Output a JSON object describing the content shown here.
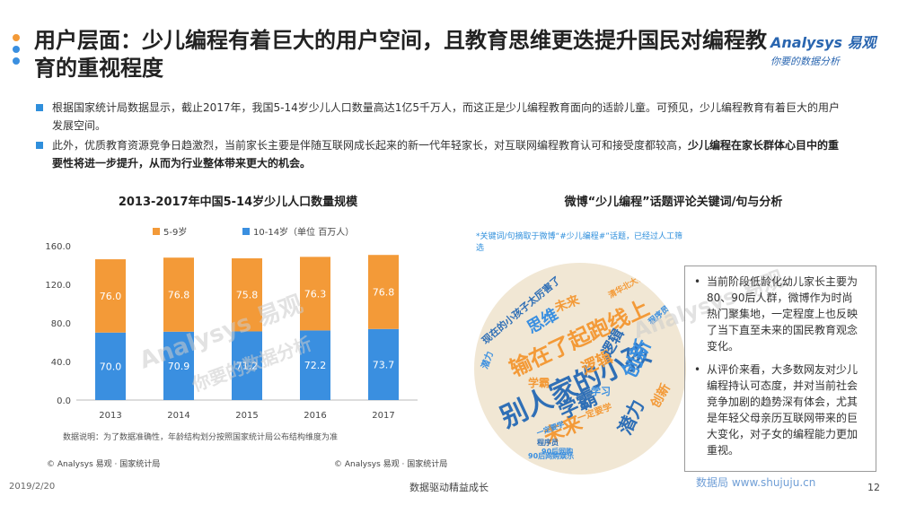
{
  "page": {
    "title": "用户层面：少儿编程有着巨大的用户空间，且教育思维更迭提升国民对编程教育的重视程度",
    "logo": {
      "brand": "Analysys 易观",
      "tagline": "你要的数据分析"
    },
    "bullets": [
      {
        "text": "根据国家统计局数据显示，截止2017年，我国5-14岁少儿人口数量高达1亿5千万人，而这正是少儿编程教育面向的适龄儿童。可预见，少儿编程教育有着巨大的用户发展空间。",
        "bold": ""
      },
      {
        "text": "此外，优质教育资源竞争日趋激烈，当前家长主要是伴随互联网成长起来的新一代年轻家长，对互联网编程教育认可和接受度都较高，",
        "bold": "少儿编程在家长群体心目中的重要性将进一步提升，从而为行业整体带来更大的机会。"
      }
    ],
    "left_chart_title": "2013-2017年中国5-14岁少儿人口数量规模",
    "right_title": "微博“少儿编程”话题评论关键词/句与分析",
    "chart_note": "数据说明：为了数据准确性，年龄结构划分按照国家统计局公布结构维度为准",
    "left_source": "© Analysys 易观 · 国家统计局",
    "mid_source": "© Analysys 易观 · 国家统计局",
    "keyword_note": "*关键词/句摘取于微博“#少儿编程#”话题，已经过人工筛选",
    "analysis": [
      "当前阶段低龄化幼儿家长主要为80、90后人群，微博作为时尚热门聚集地，一定程度上也反映了当下直至未来的国民教育观念变化。",
      "从评价来看，大多数网友对少儿编程持认可态度，并对当前社会竞争加剧的趋势深有体会，尤其是年轻父母亲历互联网带来的巨大变化，对子女的编程能力更加重视。"
    ],
    "footer": {
      "date": "2019/2/20",
      "center": "数据驱动精益成长",
      "page": "12",
      "watermark": "数据局 www.shujuju.cn"
    },
    "watermarks": {
      "chart": "Analysys 易观",
      "chart_sub": "你要的数据分析",
      "cloud": "Analysys 易观"
    },
    "wordcloud": [
      "别人家的小孩",
      "输在了起跑线上",
      "未来",
      "学霸",
      "潜力",
      "创新",
      "逻辑",
      "思维",
      "现在的小孩子太厉害了",
      "90后网购娱乐",
      "学霸",
      "程序员",
      "一定要学",
      "90后网购",
      "清华北大在招",
      "未来",
      "潜力",
      "程序员未来",
      "逻辑",
      "创新",
      "学习",
      "一定要学"
    ],
    "colors": {
      "series_5_9": "#f39a38",
      "series_10_14": "#3a8fe0",
      "accent": "#2f8fdc",
      "title_dot_1": "#f39a38",
      "title_dot_2": "#3a8fe0",
      "title_dot_3": "#3a8fe0"
    }
  },
  "chart_data": {
    "type": "bar",
    "stacked": true,
    "categories": [
      "2013",
      "2014",
      "2015",
      "2016",
      "2017"
    ],
    "series": [
      {
        "name": "10-14岁（单位 百万人）",
        "values": [
          70.0,
          70.9,
          71.2,
          72.2,
          73.7
        ]
      },
      {
        "name": "5-9岁",
        "values": [
          76.0,
          76.8,
          75.8,
          76.3,
          76.8
        ]
      }
    ],
    "legend": [
      "5-9岁",
      "10-14岁（单位 百万人）"
    ],
    "legend_position": "top",
    "ylim": [
      0,
      160
    ],
    "yticks": [
      "0.0",
      "40.0",
      "80.0",
      "120.0",
      "160.0"
    ],
    "grid": false,
    "title": "2013-2017年中国5-14岁少儿人口数量规模",
    "xlabel": "",
    "ylabel": ""
  }
}
